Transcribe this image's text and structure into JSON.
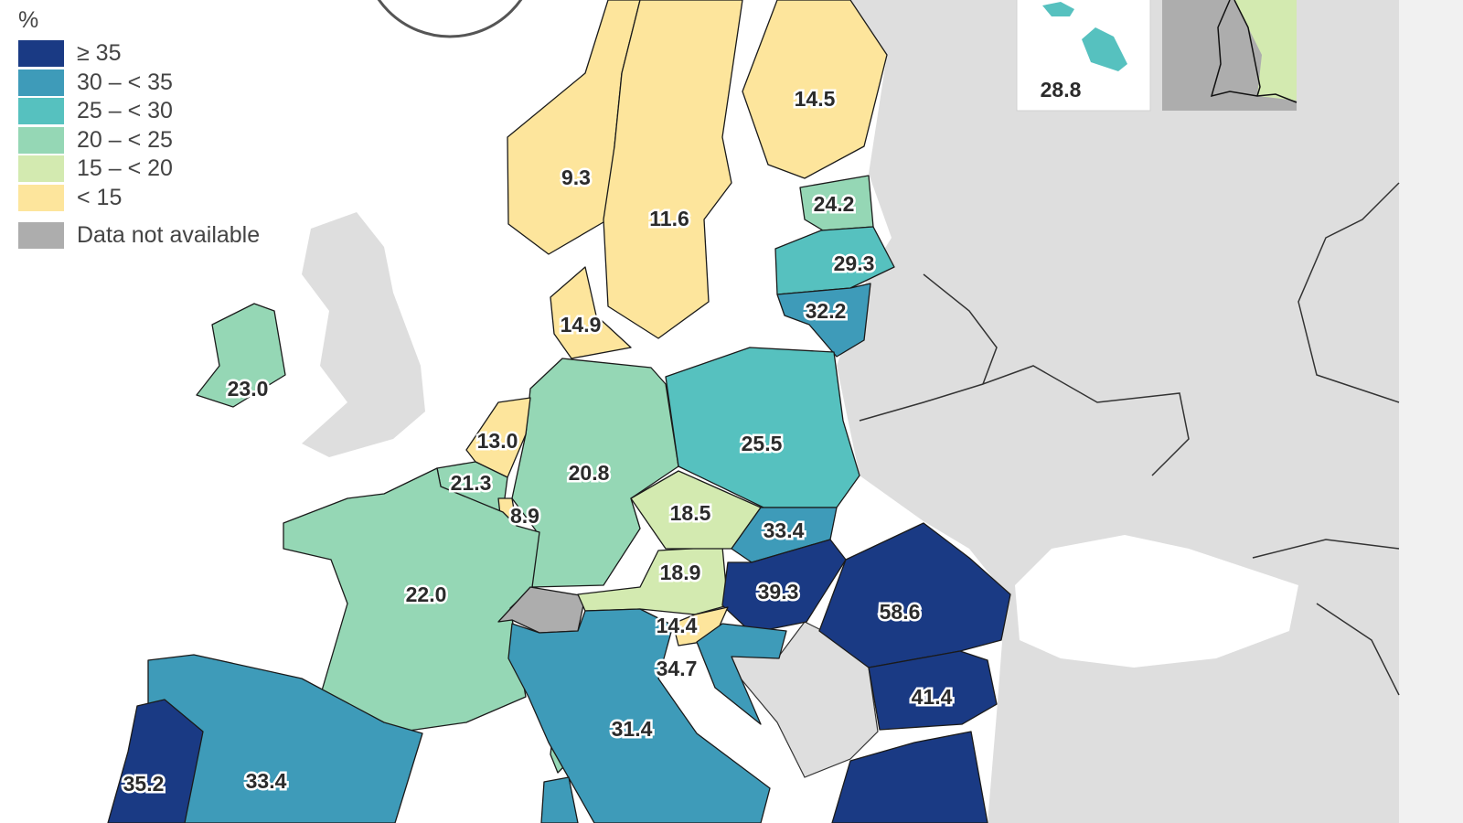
{
  "legend": {
    "unit": "%",
    "classes": [
      {
        "label": "≥ 35",
        "color": "#1a3a84"
      },
      {
        "label": "30 – < 35",
        "color": "#3e9bb9"
      },
      {
        "label": "25 – < 30",
        "color": "#56c1bf"
      },
      {
        "label": "20 – < 25",
        "color": "#95d7b5"
      },
      {
        "label": "15 – < 20",
        "color": "#d3eab0"
      },
      {
        "label": "< 15",
        "color": "#fde59c"
      }
    ],
    "not_available": {
      "label": "Data not available",
      "color": "#adadad"
    }
  },
  "colors": {
    "non_eu_land": "#dedede",
    "sea": "#ffffff",
    "border": "#1a1a1a"
  },
  "regions": [
    {
      "id": "NO",
      "value": "9.3"
    },
    {
      "id": "SE",
      "value": "11.6"
    },
    {
      "id": "FI",
      "value": "14.5"
    },
    {
      "id": "EE",
      "value": "24.2"
    },
    {
      "id": "LV",
      "value": "29.3"
    },
    {
      "id": "LT",
      "value": "32.2"
    },
    {
      "id": "DK",
      "value": "14.9"
    },
    {
      "id": "IE",
      "value": "23.0"
    },
    {
      "id": "NL",
      "value": "13.0"
    },
    {
      "id": "BE",
      "value": "21.3"
    },
    {
      "id": "LU",
      "value": "8.9"
    },
    {
      "id": "DE",
      "value": "20.8"
    },
    {
      "id": "PL",
      "value": "25.5"
    },
    {
      "id": "CZ",
      "value": "18.5"
    },
    {
      "id": "SK",
      "value": "33.4"
    },
    {
      "id": "AT",
      "value": "18.9"
    },
    {
      "id": "HU",
      "value": "39.3"
    },
    {
      "id": "RO",
      "value": "58.6"
    },
    {
      "id": "FR",
      "value": "22.0"
    },
    {
      "id": "SI",
      "value": "14.4"
    },
    {
      "id": "HR",
      "value": "34.7"
    },
    {
      "id": "IT",
      "value": "31.4"
    },
    {
      "id": "BG",
      "value": "41.4"
    },
    {
      "id": "PT",
      "value": "35.2"
    },
    {
      "id": "ES",
      "value": "33.4"
    },
    {
      "id": "MT",
      "value": "28.8"
    }
  ]
}
